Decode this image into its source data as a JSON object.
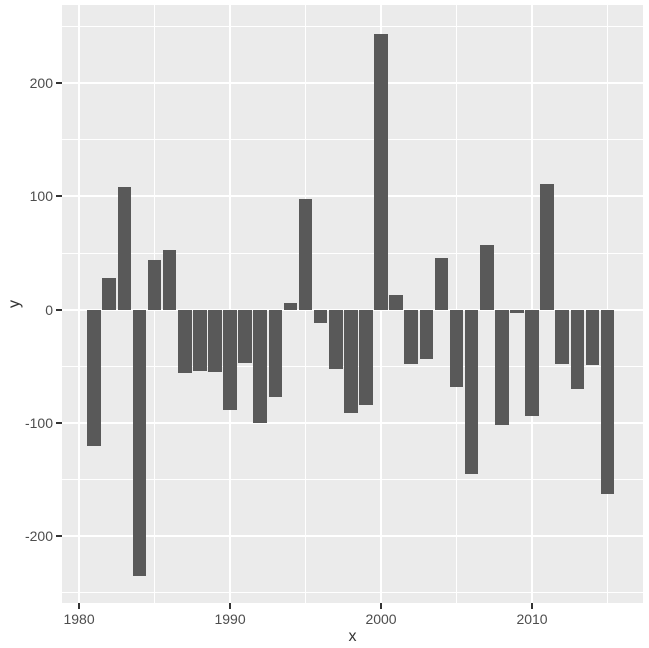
{
  "figure": {
    "background": "#FFFFFF",
    "panel_background": "#EBEBEB",
    "gridline_color": "#FFFFFF",
    "bar_color": "#595959",
    "axis_text_color": "#4D4D4D",
    "axis_title_color": "#333333",
    "tick_mark_color": "#333333"
  },
  "chart_data": {
    "type": "bar",
    "title": "",
    "xlabel": "x",
    "ylabel": "y",
    "x": [
      1981,
      1982,
      1983,
      1984,
      1985,
      1986,
      1987,
      1988,
      1989,
      1990,
      1991,
      1992,
      1993,
      1994,
      1995,
      1996,
      1997,
      1998,
      1999,
      2000,
      2001,
      2002,
      2003,
      2004,
      2005,
      2006,
      2007,
      2008,
      2009,
      2010,
      2011,
      2012,
      2013,
      2014,
      2015
    ],
    "values": [
      -120,
      28,
      108,
      -235,
      44,
      53,
      -56,
      -54,
      -55,
      -89,
      -47,
      -100,
      -77,
      6,
      98,
      -12,
      -52,
      -91,
      -84,
      243,
      13,
      -48,
      -44,
      46,
      -68,
      -145,
      57,
      -102,
      -3,
      -94,
      111,
      -48,
      -70,
      -49,
      -163
    ],
    "bar_width_years": 0.9,
    "x_ticks": [
      1980,
      1990,
      2000,
      2010
    ],
    "x_minor_ticks": [
      1985,
      1995,
      2005,
      2015
    ],
    "y_ticks": [
      200,
      100,
      0,
      -100,
      -200
    ],
    "y_minor_ticks": [
      250,
      150,
      50,
      -50,
      -150,
      -250
    ],
    "xlim": [
      1978.87,
      2017.35
    ],
    "ylim": [
      -259,
      269
    ],
    "grid": "white major+minor gridlines on grey panel",
    "legend": "none"
  }
}
